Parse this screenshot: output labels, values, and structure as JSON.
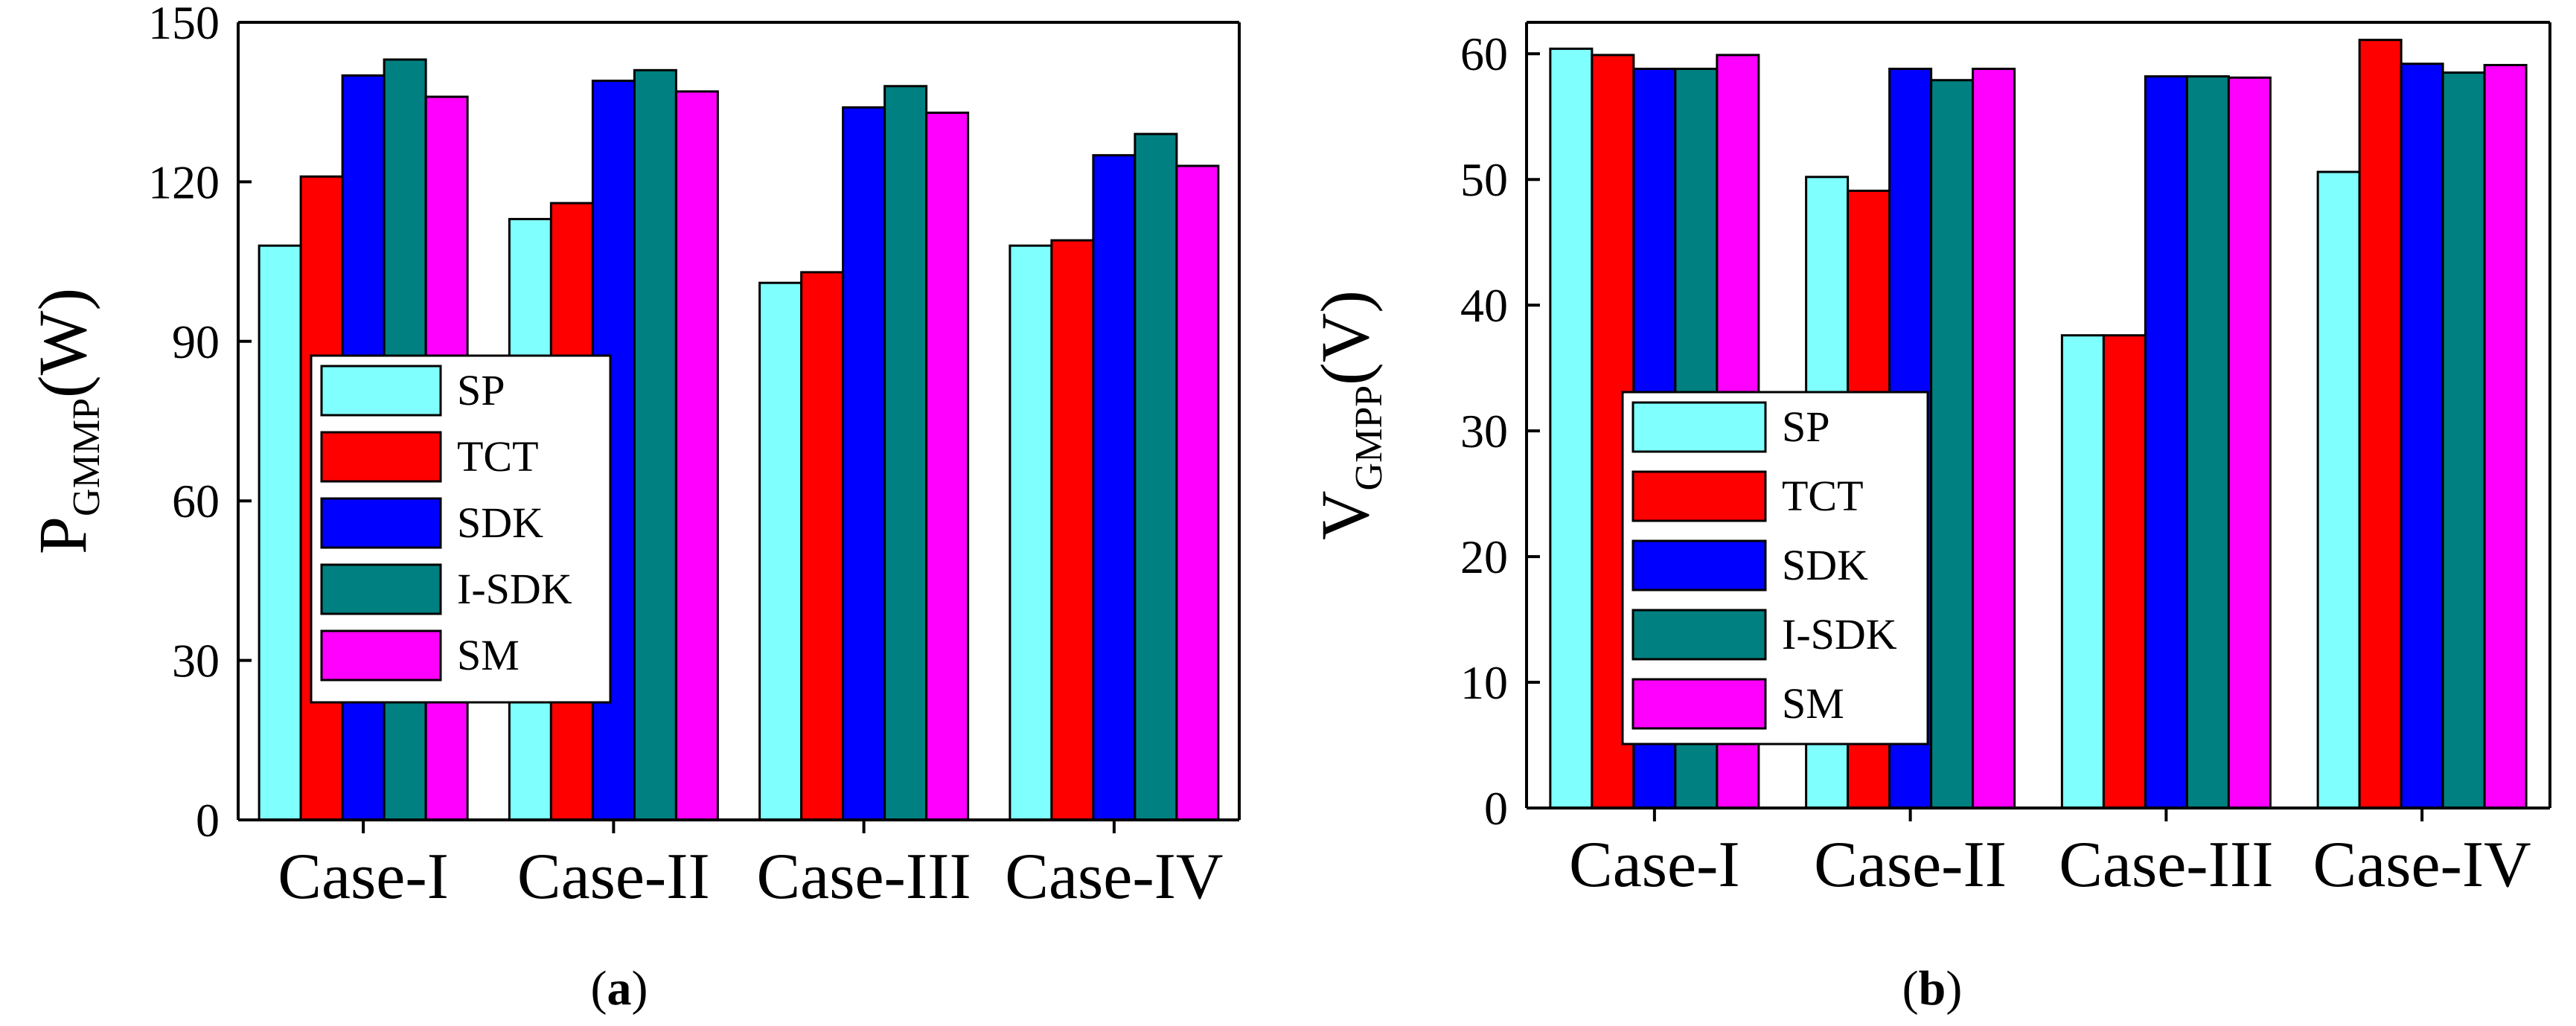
{
  "chart_data": [
    {
      "type": "bar",
      "panel": "a",
      "ylabel_main": "P",
      "ylabel_sub": "GMMP",
      "ylabel_unit": "(W)",
      "ylim": [
        0,
        150
      ],
      "yticks": [
        0,
        30,
        60,
        90,
        120,
        150
      ],
      "ytick_labels": [
        "0",
        "30",
        "60",
        "90",
        "120",
        "150"
      ],
      "categories": [
        "Case-I",
        "Case-II",
        "Case-III",
        "Case-IV"
      ],
      "legend_position": "center-left",
      "series": [
        {
          "name": "SP",
          "color": "#80ffff",
          "values": [
            108,
            113,
            101,
            108
          ]
        },
        {
          "name": "TCT",
          "color": "#ff0000",
          "values": [
            121,
            116,
            103,
            109
          ]
        },
        {
          "name": "SDK",
          "color": "#0000ff",
          "values": [
            140,
            139,
            134,
            125
          ]
        },
        {
          "name": "I-SDK",
          "color": "#008080",
          "values": [
            143,
            141,
            138,
            129
          ]
        },
        {
          "name": "SM",
          "color": "#ff00ff",
          "values": [
            136,
            137,
            133,
            123
          ]
        }
      ]
    },
    {
      "type": "bar",
      "panel": "b",
      "ylabel_main": "V",
      "ylabel_sub": "GMPP",
      "ylabel_unit": "(V)",
      "ylim": [
        0,
        62.5
      ],
      "yticks": [
        0,
        10,
        20,
        30,
        40,
        50,
        60
      ],
      "ytick_labels": [
        "0",
        "10",
        "20",
        "30",
        "40",
        "50",
        "60"
      ],
      "categories": [
        "Case-I",
        "Case-II",
        "Case-III",
        "Case-IV"
      ],
      "legend_position": "center-left",
      "series": [
        {
          "name": "SP",
          "color": "#80ffff",
          "values": [
            60.4,
            50.2,
            37.6,
            50.6
          ]
        },
        {
          "name": "TCT",
          "color": "#ff0000",
          "values": [
            59.9,
            49.1,
            37.6,
            61.1
          ]
        },
        {
          "name": "SDK",
          "color": "#0000ff",
          "values": [
            58.8,
            58.8,
            58.2,
            59.2
          ]
        },
        {
          "name": "I-SDK",
          "color": "#008080",
          "values": [
            58.8,
            57.9,
            58.2,
            58.5
          ]
        },
        {
          "name": "SM",
          "color": "#ff00ff",
          "values": [
            59.9,
            58.8,
            58.1,
            59.1
          ]
        }
      ]
    }
  ],
  "captions": {
    "a": {
      "open": "(",
      "letter": "a",
      "close": ")"
    },
    "b": {
      "open": "(",
      "letter": "b",
      "close": ")"
    }
  }
}
